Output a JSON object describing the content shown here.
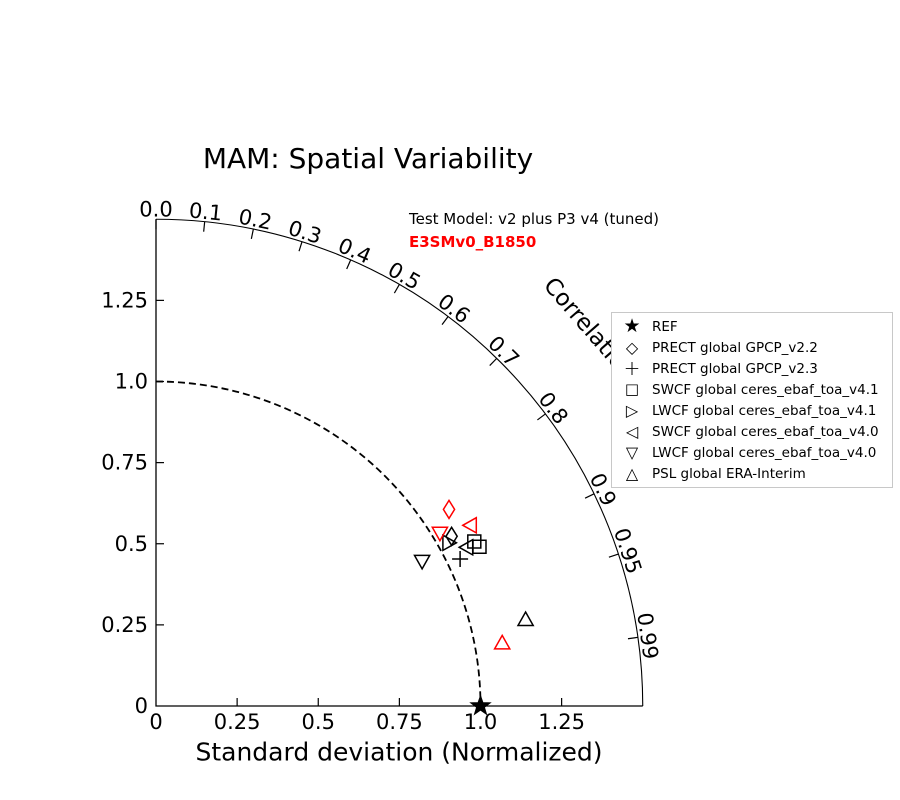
{
  "chart_data": {
    "type": "scatter",
    "subtype": "taylor_diagram",
    "title": "MAM: Spatial Variability",
    "xlabel": "Standard deviation (Normalized)",
    "correlation_axis_label": "Correlation",
    "axis_max": 1.5,
    "reference_std_arc": 1.0,
    "std_ticks": [
      0,
      0.25,
      0.5,
      0.75,
      1.0,
      1.25
    ],
    "std_tick_labels": [
      "0",
      "0.25",
      "0.5",
      "0.75",
      "1.0",
      "1.25"
    ],
    "correlation_ticks": [
      0.0,
      0.1,
      0.2,
      0.3,
      0.4,
      0.5,
      0.6,
      0.7,
      0.8,
      0.9,
      0.95,
      0.99
    ],
    "correlation_tick_labels": [
      "0.0",
      "0.1",
      "0.2",
      "0.3",
      "0.4",
      "0.5",
      "0.6",
      "0.7",
      "0.8",
      "0.9",
      "0.95",
      "0.99"
    ],
    "annotations": [
      {
        "text": "Test Model: v2 plus P3 v4 (tuned)",
        "color": "#000000",
        "bold": false
      },
      {
        "text": "E3SMv0_B1850",
        "color": "#ff0000",
        "bold": true
      }
    ],
    "points": [
      {
        "label": "REF",
        "model": "reference",
        "marker": "star",
        "color": "#000000",
        "x": 1.0,
        "y": 0.0
      },
      {
        "label": "PRECT global GPCP_v2.2",
        "model": "test",
        "marker": "thin_diamond",
        "color": "#000000",
        "x": 0.911,
        "y": 0.523
      },
      {
        "label": "PRECT global GPCP_v2.2",
        "model": "E3SMv0_B1850",
        "marker": "thin_diamond",
        "color": "#ff0000",
        "x": 0.903,
        "y": 0.606
      },
      {
        "label": "PRECT global GPCP_v2.3",
        "model": "test",
        "marker": "plus",
        "color": "#000000",
        "x": 0.937,
        "y": 0.453
      },
      {
        "label": "SWCF global ceres_ebaf_toa_v4.1",
        "model": "test",
        "marker": "square",
        "color": "#000000",
        "x": 0.981,
        "y": 0.507
      },
      {
        "label": "SWCF global ceres_ebaf_toa_v4.1",
        "model": "test",
        "marker": "square",
        "color": "#000000",
        "x": 0.997,
        "y": 0.491
      },
      {
        "label": "LWCF global ceres_ebaf_toa_v4.1",
        "model": "test",
        "marker": "triangle_right",
        "color": "#000000",
        "x": 0.901,
        "y": 0.503
      },
      {
        "label": "SWCF global ceres_ebaf_toa_v4.0",
        "model": "test",
        "marker": "triangle_left",
        "color": "#000000",
        "x": 0.959,
        "y": 0.489
      },
      {
        "label": "SWCF global ceres_ebaf_toa_v4.0",
        "model": "E3SMv0_B1850",
        "marker": "triangle_left",
        "color": "#ff0000",
        "x": 0.97,
        "y": 0.557
      },
      {
        "label": "LWCF global ceres_ebaf_toa_v4.0",
        "model": "test",
        "marker": "triangle_down",
        "color": "#000000",
        "x": 0.82,
        "y": 0.447
      },
      {
        "label": "LWCF global ceres_ebaf_toa_v4.0",
        "model": "E3SMv0_B1850",
        "marker": "triangle_down",
        "color": "#ff0000",
        "x": 0.875,
        "y": 0.534
      },
      {
        "label": "PSL global ERA-Interim",
        "model": "test",
        "marker": "triangle_up",
        "color": "#000000",
        "x": 1.139,
        "y": 0.265
      },
      {
        "label": "PSL global ERA-Interim",
        "model": "E3SMv0_B1850",
        "marker": "triangle_up",
        "color": "#ff0000",
        "x": 1.067,
        "y": 0.193
      }
    ]
  },
  "legend": {
    "items": [
      {
        "marker": "star",
        "glyph": "★",
        "label": "REF"
      },
      {
        "marker": "thin_diamond",
        "glyph": "◇",
        "label": "PRECT global GPCP_v2.2"
      },
      {
        "marker": "plus",
        "glyph": "+",
        "label": "PRECT global GPCP_v2.3"
      },
      {
        "marker": "square",
        "glyph": "□",
        "label": "SWCF global ceres_ebaf_toa_v4.1"
      },
      {
        "marker": "triangle_right",
        "glyph": "▷",
        "label": "LWCF global ceres_ebaf_toa_v4.1"
      },
      {
        "marker": "triangle_left",
        "glyph": "◁",
        "label": "SWCF global ceres_ebaf_toa_v4.0"
      },
      {
        "marker": "triangle_down",
        "glyph": "▽",
        "label": "LWCF global ceres_ebaf_toa_v4.0"
      },
      {
        "marker": "triangle_up",
        "glyph": "△",
        "label": "PSL global ERA-Interim"
      }
    ]
  },
  "colors": {
    "accent_red": "#ff0000",
    "axis_black": "#000000",
    "legend_border": "#c8c8c8"
  }
}
